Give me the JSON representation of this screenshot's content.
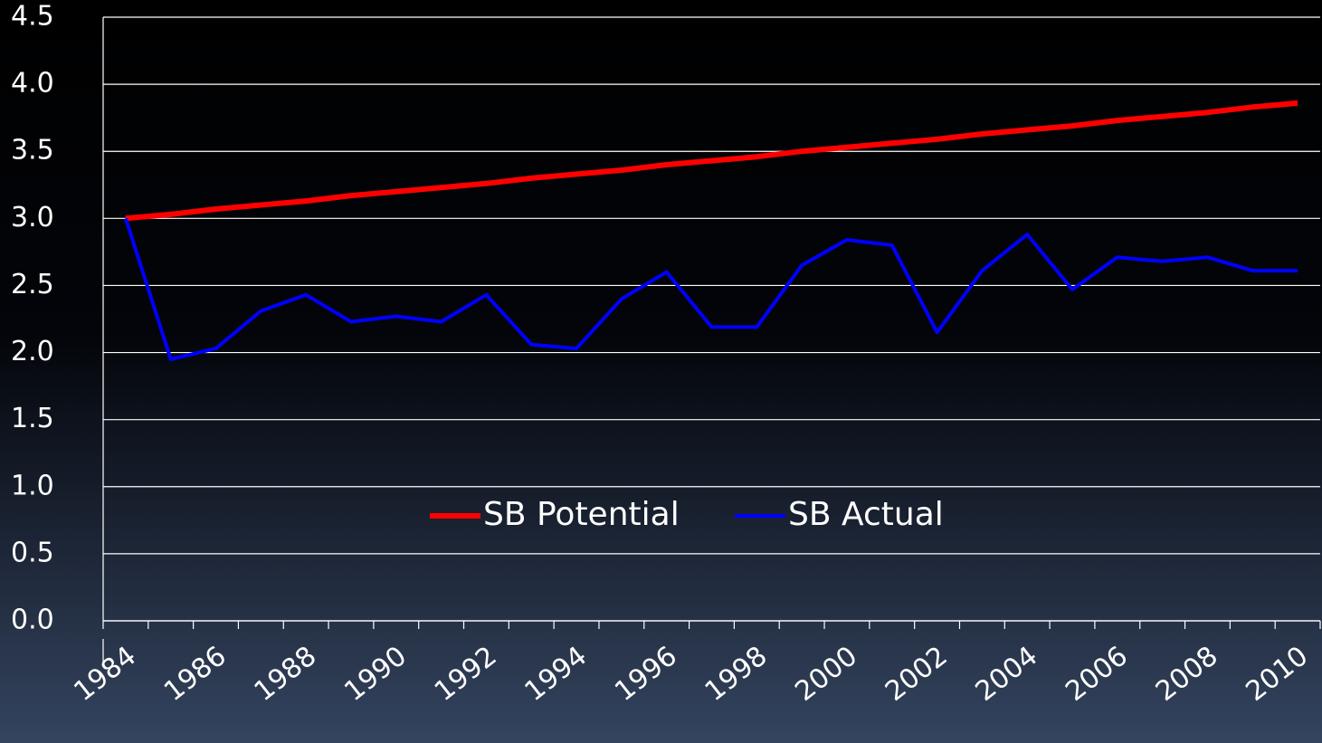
{
  "chart_data": {
    "type": "line",
    "categories": [
      "1984",
      null,
      "1986",
      null,
      "1988",
      null,
      "1990",
      null,
      "1992",
      null,
      "1994",
      null,
      "1996",
      null,
      "1998",
      null,
      "2000",
      null,
      "2002",
      null,
      "2004",
      null,
      "2006",
      null,
      "2008",
      null,
      "2010"
    ],
    "series": [
      {
        "name": "SB Potential",
        "color": "#ff0000",
        "values": [
          3.0,
          3.03,
          3.07,
          3.1,
          3.13,
          3.17,
          3.2,
          3.23,
          3.26,
          3.3,
          3.33,
          3.36,
          3.4,
          3.43,
          3.46,
          3.5,
          3.53,
          3.56,
          3.59,
          3.63,
          3.66,
          3.69,
          3.73,
          3.76,
          3.79,
          3.83,
          3.86
        ]
      },
      {
        "name": "SB Actual",
        "color": "#0000ff",
        "values": [
          3.0,
          1.95,
          2.03,
          2.31,
          2.43,
          2.23,
          2.27,
          2.23,
          2.43,
          2.06,
          2.03,
          2.4,
          2.6,
          2.19,
          2.19,
          2.65,
          2.84,
          2.8,
          2.15,
          2.61,
          2.88,
          2.47,
          2.71,
          2.68,
          2.71,
          2.61,
          2.61
        ]
      }
    ],
    "ylim": [
      0,
      4.5
    ],
    "yticks": [
      {
        "value": 0,
        "label": "0.0"
      },
      0.5,
      {
        "value": 1,
        "label": "1.0"
      },
      1.5,
      {
        "value": 2,
        "label": "2.0"
      },
      2.5,
      {
        "value": 3,
        "label": "3.0"
      },
      3.5,
      {
        "value": 4,
        "label": "4.0"
      },
      4.5
    ],
    "grid": true,
    "legend": "center"
  }
}
